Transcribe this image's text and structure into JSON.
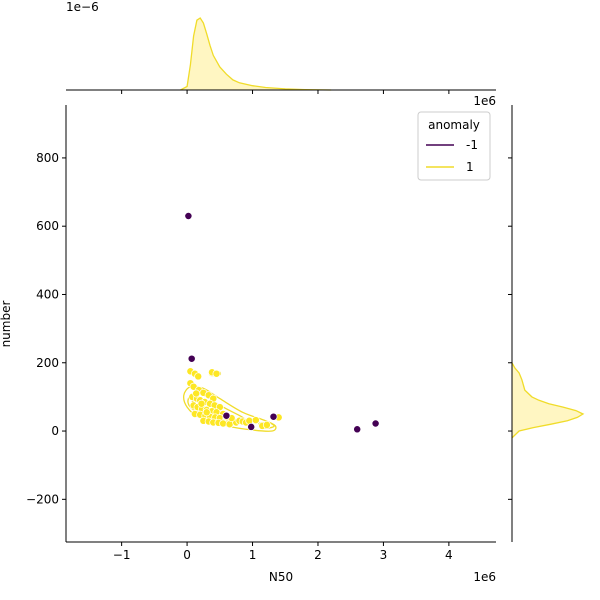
{
  "chart_data": {
    "type": "scatter",
    "title": "",
    "xlabel": "N50",
    "ylabel": "number",
    "x_offset_label": "1e6",
    "y_offset_label": "1e6",
    "top_marginal_offset_label": "1e−6",
    "xlim": [
      -1.85,
      4.72
    ],
    "ylim": [
      -325,
      955
    ],
    "xticks": [
      -1,
      0,
      1,
      2,
      3,
      4
    ],
    "xtick_labels": [
      "−1",
      "0",
      "1",
      "2",
      "3",
      "4"
    ],
    "yticks": [
      -200,
      0,
      200,
      400,
      600,
      800
    ],
    "ytick_labels": [
      "−200",
      "0",
      "200",
      "400",
      "600",
      "800"
    ],
    "grid": false,
    "legend": {
      "title": "anomaly",
      "placement": "top-right",
      "entries": [
        "-1",
        "1"
      ]
    },
    "colors": {
      "anomaly_neg": "#440154",
      "anomaly_pos": "#fde725",
      "fill_pos": "#fff6c2",
      "kde_line": "#f0dc2a"
    },
    "series": [
      {
        "name": "-1",
        "color": "#440154",
        "points": [
          [
            0.02,
            630
          ],
          [
            0.07,
            212
          ],
          [
            0.6,
            45
          ],
          [
            0.98,
            12
          ],
          [
            1.32,
            42
          ],
          [
            2.6,
            5
          ],
          [
            2.88,
            22
          ]
        ]
      },
      {
        "name": "1",
        "color": "#fde725",
        "points": [
          [
            0.05,
            175
          ],
          [
            0.12,
            168
          ],
          [
            0.17,
            160
          ],
          [
            0.38,
            172
          ],
          [
            0.45,
            168
          ],
          [
            0.05,
            140
          ],
          [
            0.1,
            130
          ],
          [
            0.18,
            120
          ],
          [
            0.25,
            112
          ],
          [
            0.33,
            105
          ],
          [
            0.4,
            95
          ],
          [
            0.08,
            100
          ],
          [
            0.15,
            95
          ],
          [
            0.2,
            90
          ],
          [
            0.27,
            85
          ],
          [
            0.35,
            80
          ],
          [
            0.42,
            75
          ],
          [
            0.5,
            70
          ],
          [
            0.1,
            75
          ],
          [
            0.16,
            70
          ],
          [
            0.23,
            65
          ],
          [
            0.3,
            62
          ],
          [
            0.38,
            58
          ],
          [
            0.45,
            55
          ],
          [
            0.55,
            50
          ],
          [
            0.12,
            50
          ],
          [
            0.2,
            48
          ],
          [
            0.28,
            45
          ],
          [
            0.35,
            42
          ],
          [
            0.43,
            40
          ],
          [
            0.5,
            38
          ],
          [
            0.6,
            35
          ],
          [
            0.7,
            32
          ],
          [
            0.25,
            30
          ],
          [
            0.33,
            28
          ],
          [
            0.4,
            25
          ],
          [
            0.48,
            24
          ],
          [
            0.55,
            22
          ],
          [
            0.65,
            20
          ],
          [
            0.75,
            25
          ],
          [
            0.8,
            30
          ],
          [
            0.85,
            28
          ],
          [
            0.9,
            25
          ],
          [
            0.95,
            30
          ],
          [
            1.05,
            32
          ],
          [
            1.15,
            15
          ],
          [
            1.22,
            18
          ],
          [
            1.4,
            40
          ],
          [
            0.3,
            55
          ],
          [
            0.22,
            80
          ],
          [
            0.14,
            110
          ],
          [
            0.6,
            42
          ],
          [
            0.68,
            38
          ]
        ]
      }
    ],
    "kde_contours_pos": [
      [
        [
          -0.05,
          105
        ],
        [
          0.05,
          130
        ],
        [
          0.25,
          125
        ],
        [
          0.5,
          95
        ],
        [
          0.85,
          55
        ],
        [
          1.2,
          30
        ],
        [
          1.35,
          15
        ],
        [
          1.3,
          0
        ],
        [
          1.0,
          3
        ],
        [
          0.6,
          15
        ],
        [
          0.2,
          38
        ],
        [
          0.0,
          70
        ],
        [
          -0.05,
          105
        ]
      ],
      [
        [
          0.02,
          95
        ],
        [
          0.12,
          110
        ],
        [
          0.3,
          100
        ],
        [
          0.55,
          70
        ],
        [
          0.85,
          40
        ],
        [
          0.9,
          25
        ],
        [
          0.6,
          22
        ],
        [
          0.25,
          45
        ],
        [
          0.05,
          70
        ],
        [
          0.02,
          95
        ]
      ],
      [
        [
          0.08,
          85
        ],
        [
          0.2,
          90
        ],
        [
          0.4,
          70
        ],
        [
          0.55,
          45
        ],
        [
          0.4,
          38
        ],
        [
          0.2,
          55
        ],
        [
          0.08,
          85
        ]
      ],
      [
        [
          0.14,
          75
        ],
        [
          0.26,
          72
        ],
        [
          0.34,
          58
        ],
        [
          0.24,
          52
        ],
        [
          0.15,
          62
        ],
        [
          0.14,
          75
        ]
      ],
      [
        [
          1.1,
          22
        ],
        [
          1.25,
          24
        ],
        [
          1.33,
          14
        ],
        [
          1.18,
          8
        ],
        [
          1.1,
          22
        ]
      ],
      [
        [
          0.35,
          175
        ],
        [
          0.48,
          175
        ],
        [
          0.5,
          165
        ],
        [
          0.36,
          163
        ],
        [
          0.35,
          175
        ]
      ]
    ],
    "marginal_x_pos": {
      "x": [
        -0.1,
        0.0,
        0.05,
        0.1,
        0.15,
        0.2,
        0.25,
        0.3,
        0.35,
        0.4,
        0.5,
        0.6,
        0.7,
        0.8,
        1.0,
        1.2,
        1.5,
        1.8,
        2.2
      ],
      "density": [
        0.0,
        0.05,
        0.35,
        0.75,
        0.97,
        1.0,
        0.93,
        0.78,
        0.62,
        0.48,
        0.32,
        0.22,
        0.14,
        0.1,
        0.06,
        0.035,
        0.015,
        0.005,
        0.0
      ]
    },
    "marginal_y_pos": {
      "y": [
        -20,
        0,
        10,
        20,
        30,
        40,
        50,
        60,
        70,
        80,
        90,
        100,
        120,
        150,
        170,
        185,
        200
      ],
      "density": [
        0.0,
        0.1,
        0.3,
        0.55,
        0.78,
        0.92,
        1.0,
        0.9,
        0.72,
        0.52,
        0.38,
        0.28,
        0.18,
        0.14,
        0.1,
        0.04,
        0.0
      ]
    }
  }
}
